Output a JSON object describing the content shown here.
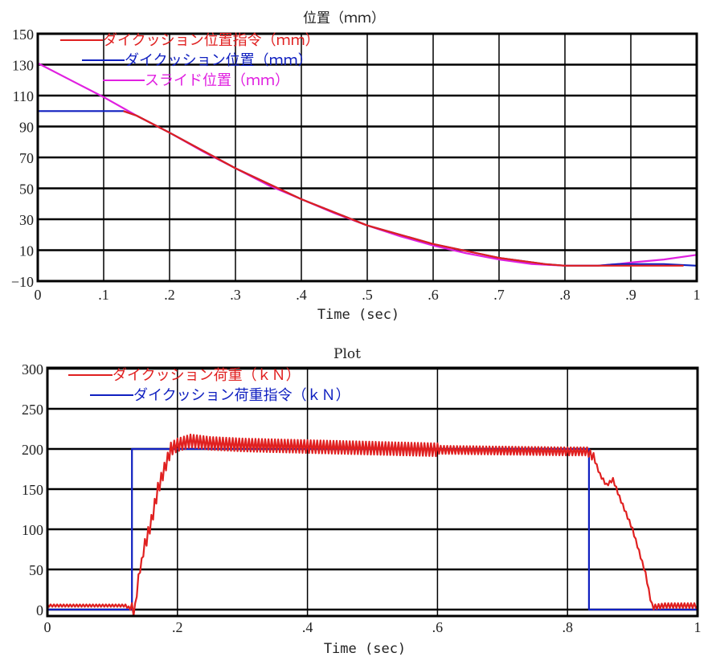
{
  "chart_data": [
    {
      "type": "line",
      "title": "位置（ｍｍ）",
      "xlabel": "Time (sec)",
      "ylabel": "",
      "xlim": [
        0,
        1
      ],
      "ylim": [
        -10,
        150
      ],
      "xticks": [
        0,
        0.1,
        0.2,
        0.3,
        0.4,
        0.5,
        0.6,
        0.7,
        0.8,
        0.9,
        1
      ],
      "xtick_labels": [
        "0",
        ".1",
        ".2",
        ".3",
        ".4",
        ".5",
        ".6",
        ".7",
        ".8",
        ".9",
        "1"
      ],
      "yticks": [
        150,
        130,
        110,
        90,
        70,
        50,
        30,
        10,
        -10
      ],
      "ytick_labels": [
        "150",
        "130",
        "110",
        "90",
        "70",
        "50",
        "30",
        "10",
        "−10"
      ],
      "grid": true,
      "legend_position": "upper-left",
      "series": [
        {
          "name": "ダイクッション位置指令（ｍｍ）",
          "color": "#e02020",
          "x": [
            0.13,
            0.15,
            0.2,
            0.3,
            0.4,
            0.5,
            0.6,
            0.7,
            0.77,
            0.8,
            0.85,
            0.9,
            0.95,
            0.98
          ],
          "y": [
            100,
            97,
            86,
            63,
            43,
            26,
            14,
            5,
            1,
            0,
            0,
            0,
            0,
            0
          ]
        },
        {
          "name": "ダイクッション位置（ｍｍ）",
          "color": "#1020c0",
          "x": [
            0,
            0.13,
            0.15,
            0.2,
            0.3,
            0.4,
            0.5,
            0.6,
            0.7,
            0.77,
            0.8,
            0.85,
            0.88,
            0.9,
            0.95,
            1
          ],
          "y": [
            100,
            100,
            97,
            86,
            63,
            43,
            26,
            14,
            5,
            1,
            0,
            0,
            1,
            1,
            1,
            0
          ]
        },
        {
          "name": "スライド位置（ｍｍ）",
          "color": "#e020e0",
          "x": [
            0,
            0.05,
            0.1,
            0.15,
            0.2,
            0.25,
            0.3,
            0.35,
            0.4,
            0.45,
            0.5,
            0.55,
            0.6,
            0.65,
            0.7,
            0.75,
            0.8,
            0.85,
            0.88,
            0.9,
            0.95,
            1
          ],
          "y": [
            131,
            120,
            109,
            97,
            86,
            74,
            63,
            52,
            43,
            34,
            26,
            19,
            13,
            8,
            4,
            1,
            0,
            0,
            1,
            2,
            4,
            7
          ]
        }
      ]
    },
    {
      "type": "line",
      "title": "Plot",
      "xlabel": "Time (sec)",
      "ylabel": "",
      "xlim": [
        0,
        1
      ],
      "ylim": [
        -8,
        300
      ],
      "xticks": [
        0,
        0.2,
        0.4,
        0.6,
        0.8,
        1
      ],
      "xtick_labels": [
        "0",
        ".2",
        ".4",
        ".6",
        ".8",
        "1"
      ],
      "yticks": [
        300,
        250,
        200,
        150,
        100,
        50,
        0
      ],
      "ytick_labels": [
        "300",
        "250",
        "200",
        "150",
        "100",
        "50",
        "0"
      ],
      "grid": true,
      "legend_position": "upper-left",
      "series": [
        {
          "name": "ダイクッション荷重（ｋＮ）",
          "color": "#e02020",
          "x": [
            0,
            0.12,
            0.13,
            0.135,
            0.14,
            0.15,
            0.16,
            0.17,
            0.18,
            0.19,
            0.2,
            0.22,
            0.25,
            0.3,
            0.4,
            0.5,
            0.6,
            0.7,
            0.8,
            0.83,
            0.84,
            0.85,
            0.86,
            0.87,
            0.88,
            0.9,
            0.92,
            0.93,
            0.95,
            1
          ],
          "y": [
            5,
            5,
            0,
            0,
            40,
            80,
            110,
            150,
            175,
            200,
            205,
            210,
            207,
            205,
            203,
            201,
            199,
            198,
            197,
            197,
            190,
            168,
            155,
            162,
            140,
            100,
            45,
            3,
            5,
            5
          ],
          "oscillation_amplitude": 8
        },
        {
          "name": "ダイクッション荷重指令（ｋＮ）",
          "color": "#1020c0",
          "x": [
            0,
            0.13,
            0.13,
            0.833,
            0.833,
            1
          ],
          "y": [
            0,
            0,
            200,
            200,
            0,
            0
          ]
        }
      ]
    }
  ],
  "plots": {
    "top": {
      "title": "位置（ｍｍ）",
      "xlabel": "Time (sec)"
    },
    "bottom": {
      "title": "Plot",
      "xlabel": "Time (sec)"
    }
  }
}
